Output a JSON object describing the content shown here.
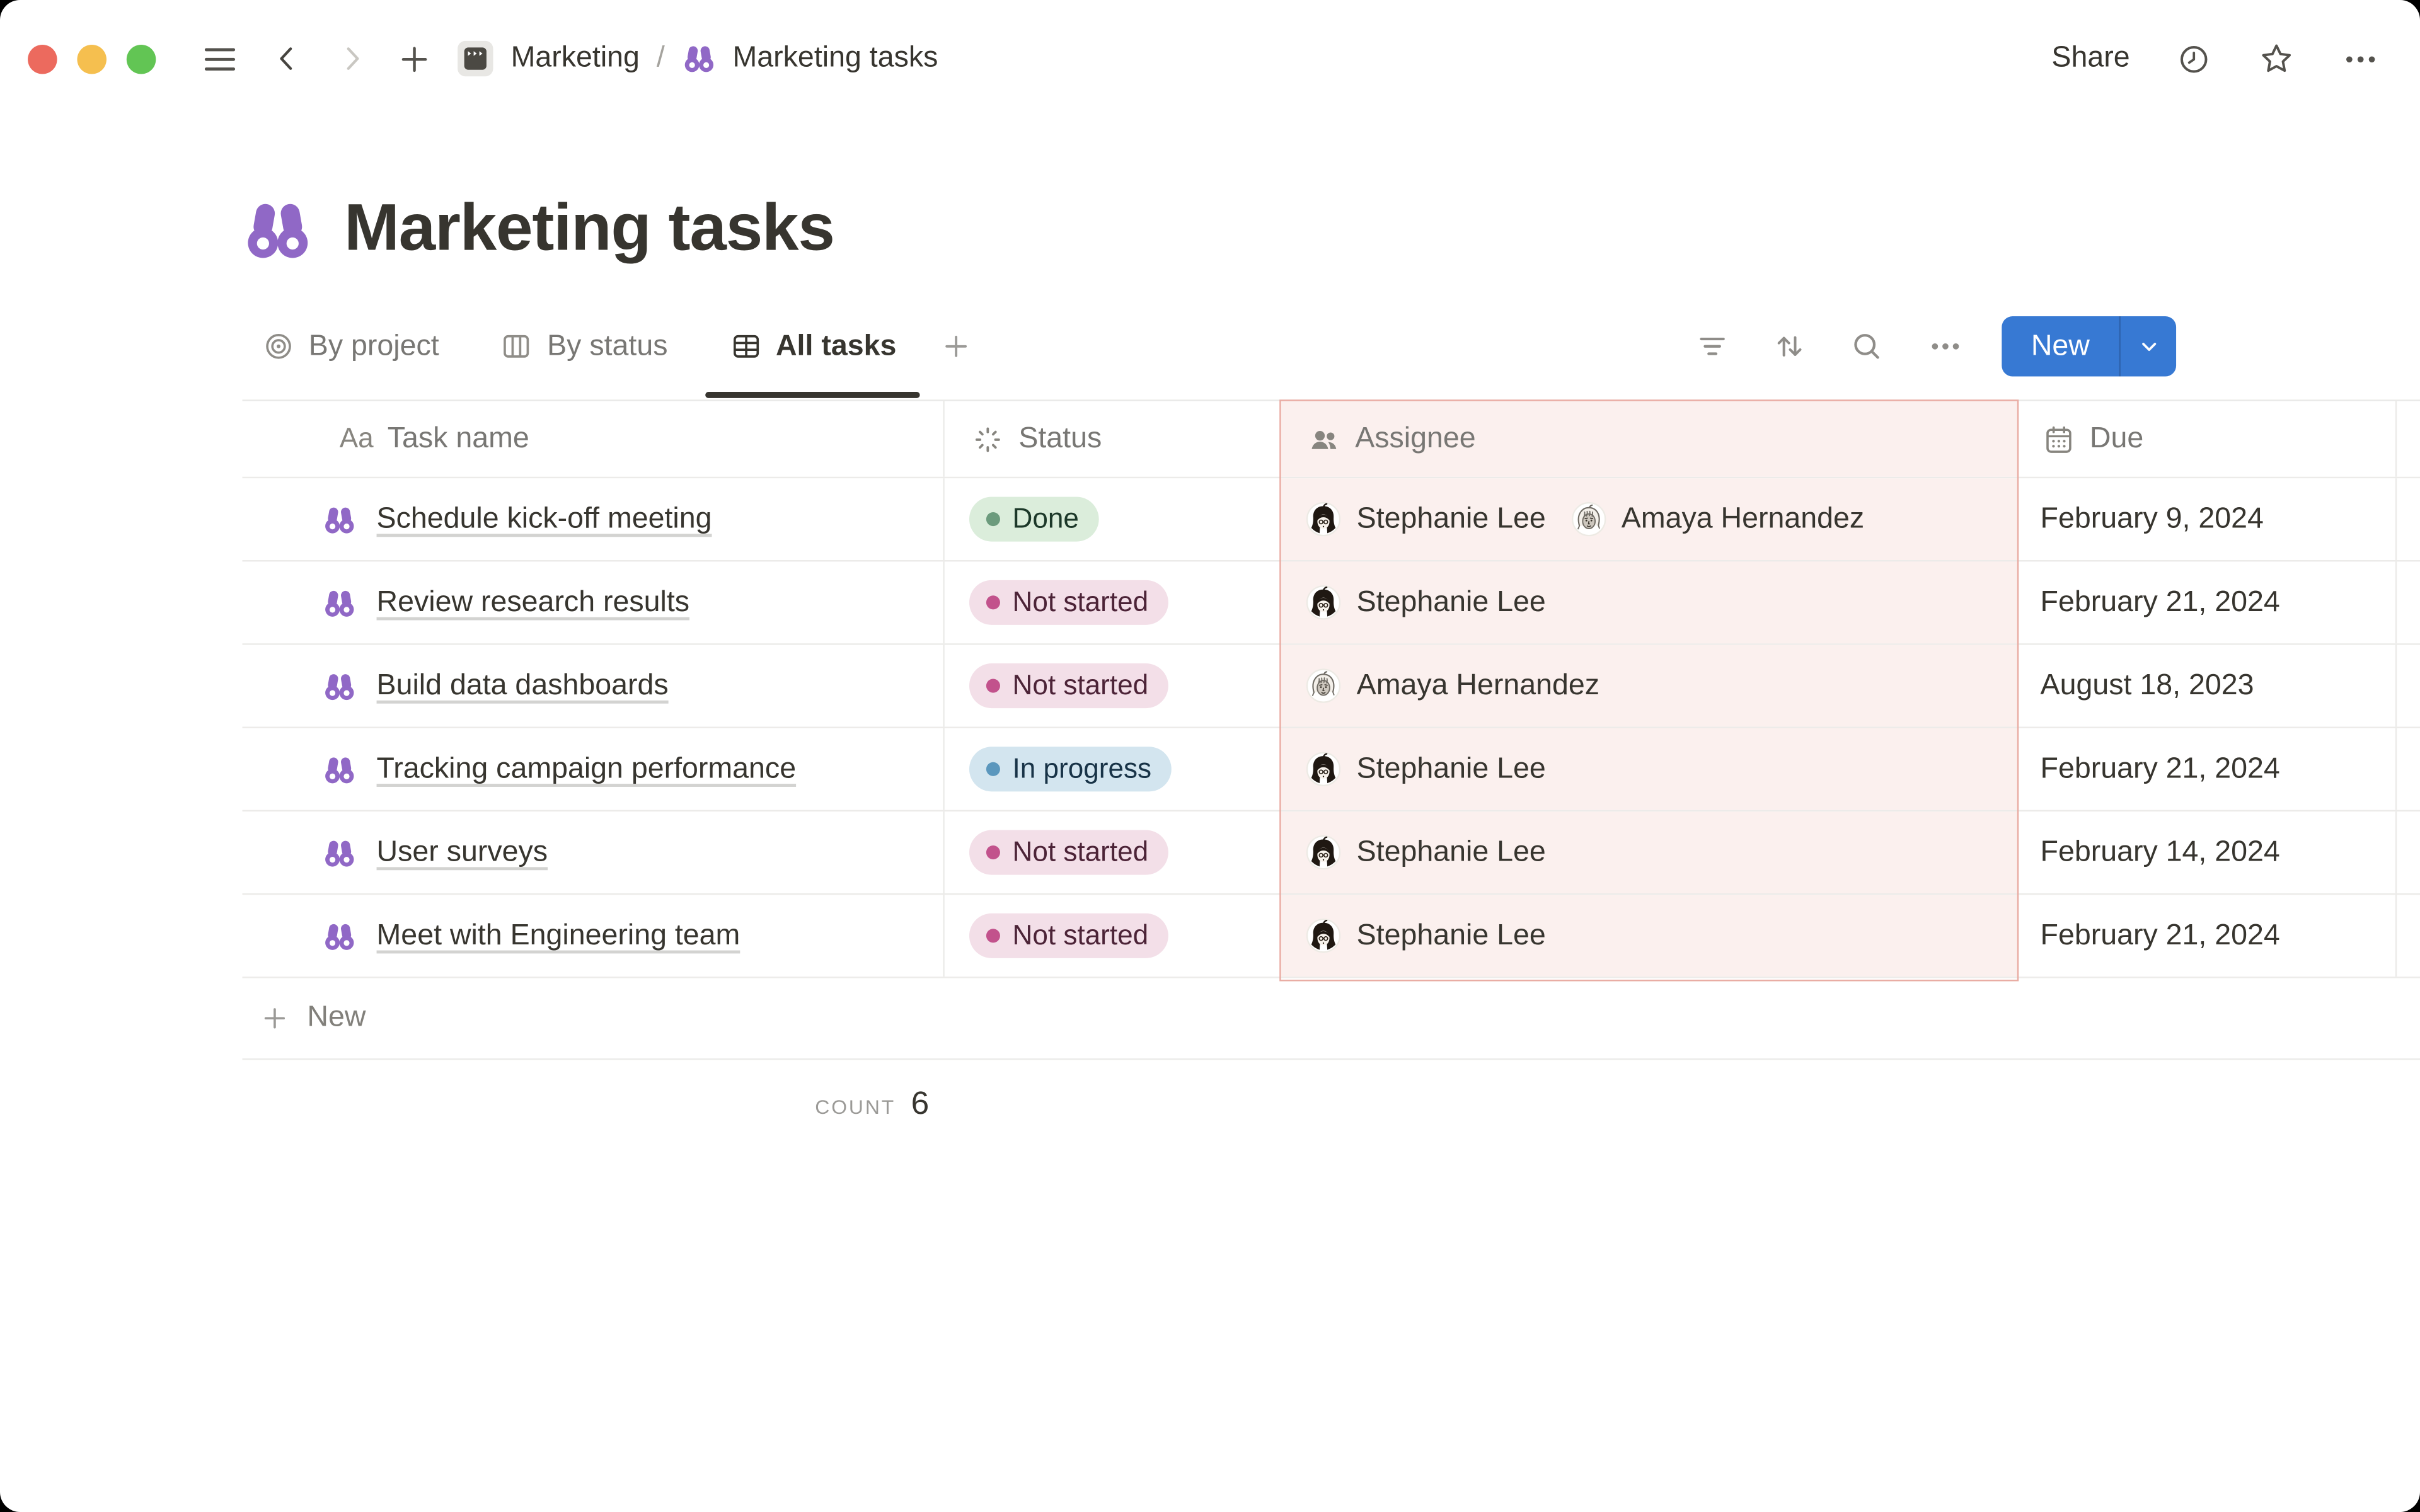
{
  "topbar": {
    "breadcrumb": {
      "root": "Marketing",
      "separator": "/",
      "current": "Marketing tasks"
    },
    "share_label": "Share"
  },
  "page": {
    "title": "Marketing tasks"
  },
  "views": {
    "tabs": [
      {
        "label": "By project",
        "active": false
      },
      {
        "label": "By status",
        "active": false
      },
      {
        "label": "All tasks",
        "active": true
      }
    ],
    "new_button_label": "New"
  },
  "table": {
    "columns": [
      {
        "key": "task",
        "label": "Task name",
        "glyph": "Aa"
      },
      {
        "key": "status",
        "label": "Status"
      },
      {
        "key": "assignee",
        "label": "Assignee"
      },
      {
        "key": "due",
        "label": "Due"
      }
    ],
    "rows": [
      {
        "task": "Schedule kick-off meeting",
        "status": {
          "label": "Done",
          "key": "done"
        },
        "assignees": [
          {
            "name": "Stephanie Lee",
            "avatar": "dark"
          },
          {
            "name": "Amaya Hernandez",
            "avatar": "light"
          }
        ],
        "due": "February 9, 2024"
      },
      {
        "task": "Review research results",
        "status": {
          "label": "Not started",
          "key": "not_started"
        },
        "assignees": [
          {
            "name": "Stephanie Lee",
            "avatar": "dark"
          }
        ],
        "due": "February 21, 2024"
      },
      {
        "task": "Build data dashboards",
        "status": {
          "label": "Not started",
          "key": "not_started"
        },
        "assignees": [
          {
            "name": "Amaya Hernandez",
            "avatar": "light"
          }
        ],
        "due": "August 18, 2023"
      },
      {
        "task": "Tracking campaign performance",
        "status": {
          "label": "In progress",
          "key": "in_progress"
        },
        "assignees": [
          {
            "name": "Stephanie Lee",
            "avatar": "dark"
          }
        ],
        "due": "February 21, 2024"
      },
      {
        "task": "User surveys",
        "status": {
          "label": "Not started",
          "key": "not_started"
        },
        "assignees": [
          {
            "name": "Stephanie Lee",
            "avatar": "dark"
          }
        ],
        "due": "February 14, 2024"
      },
      {
        "task": "Meet with Engineering team",
        "status": {
          "label": "Not started",
          "key": "not_started"
        },
        "assignees": [
          {
            "name": "Stephanie Lee",
            "avatar": "dark"
          }
        ],
        "due": "February 21, 2024"
      }
    ],
    "new_row_label": "New",
    "footer": {
      "count_label": "COUNT",
      "count_value": "6"
    }
  },
  "colors": {
    "accent_blue": "#3779D3",
    "icon_purple": "#9068C6",
    "highlight_column_bg": "#FBF0EE",
    "highlight_column_border": "#E9ACA3",
    "status": {
      "done": {
        "bg": "#DBEDDB",
        "dot": "#6C9B7D",
        "text": "#1C3829"
      },
      "not_started": {
        "bg": "#F3DFE8",
        "dot": "#C2528C",
        "text": "#4C2337"
      },
      "in_progress": {
        "bg": "#D3E5EF",
        "dot": "#5B97BD",
        "text": "#183347"
      }
    }
  }
}
